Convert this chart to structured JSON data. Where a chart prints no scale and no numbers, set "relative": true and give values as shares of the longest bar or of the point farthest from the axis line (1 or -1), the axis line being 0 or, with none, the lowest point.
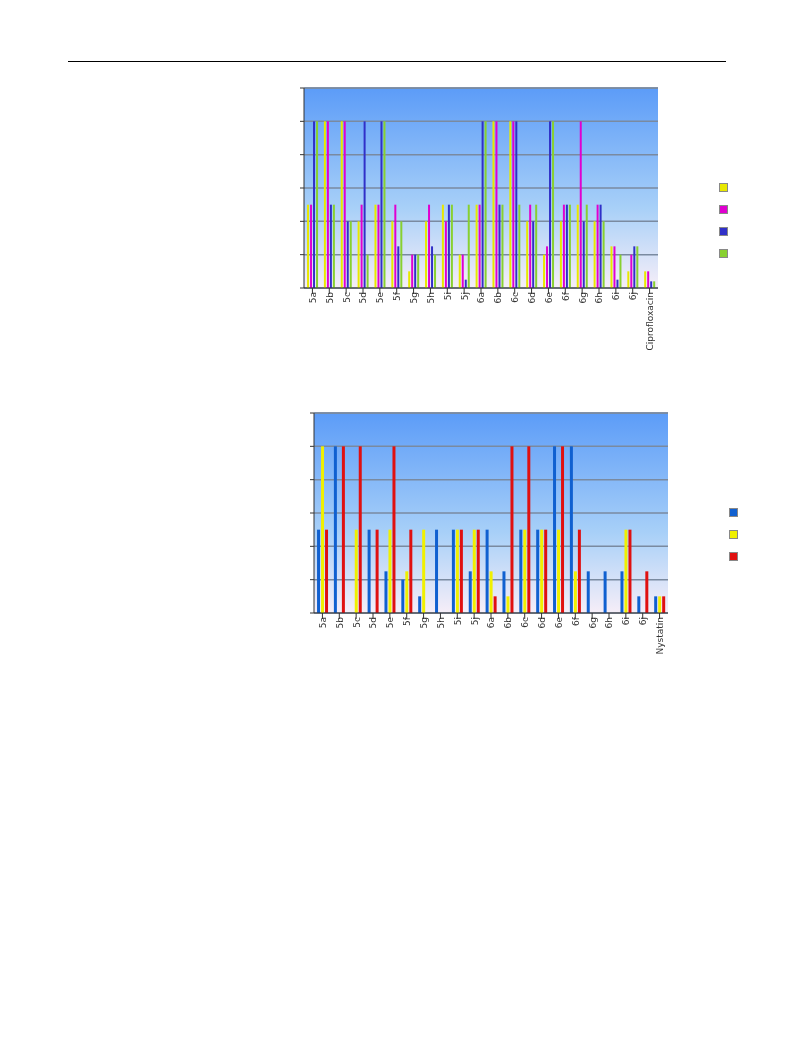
{
  "chart_data": [
    {
      "type": "bar",
      "relative": true,
      "grid": "y",
      "categories": [
        "5a",
        "5b",
        "5c",
        "5d",
        "5e",
        "5f",
        "5g",
        "5h",
        "5i",
        "5j",
        "6a",
        "6b",
        "6c",
        "6d",
        "6e",
        "6f",
        "6g",
        "6h",
        "6i",
        "6j",
        "Ciprofloxacin"
      ],
      "series": [
        {
          "color": "#e8e800",
          "values": [
            0.5,
            1,
            1,
            0.4,
            0.5,
            0.4,
            0.1,
            0.4,
            0.5,
            0.2,
            0.5,
            1,
            1,
            0.4,
            0.2,
            0.4,
            0.5,
            0.4,
            0.25,
            0.1,
            0.1
          ]
        },
        {
          "color": "#e000d0",
          "values": [
            0.5,
            1,
            1,
            0.5,
            0.5,
            0.5,
            0.2,
            0.5,
            0.4,
            0.2,
            0.5,
            1,
            1,
            0.5,
            0.25,
            0.5,
            1,
            0.5,
            0.25,
            0.2,
            0.1
          ]
        },
        {
          "color": "#3030c8",
          "values": [
            1,
            0.5,
            0.4,
            1,
            1,
            0.25,
            0.2,
            0.25,
            0.5,
            0.05,
            1,
            0.5,
            1,
            0.4,
            1,
            0.5,
            0.4,
            0.5,
            0.05,
            0.25,
            0.04
          ]
        },
        {
          "color": "#88d030",
          "values": [
            1,
            0.5,
            0.4,
            0.2,
            1,
            0.4,
            0.2,
            0.2,
            0.5,
            0.5,
            1,
            0.5,
            0.5,
            0.5,
            1,
            0.5,
            0.5,
            0.4,
            0.2,
            0.25,
            0.04
          ]
        }
      ]
    },
    {
      "type": "bar",
      "relative": true,
      "grid": "y",
      "categories": [
        "5a",
        "5b",
        "5c",
        "5d",
        "5e",
        "5f",
        "5g",
        "5h",
        "5i",
        "5j",
        "6a",
        "6b",
        "6c",
        "6d",
        "6e",
        "6f",
        "6g",
        "6h",
        "6i",
        "6j",
        "Nystatin"
      ],
      "series": [
        {
          "color": "#1060d0",
          "values": [
            0.5,
            1,
            0,
            0.5,
            0.25,
            0.2,
            0.1,
            0.5,
            0.5,
            0.25,
            0.5,
            0.25,
            0.5,
            0.5,
            1,
            1,
            0.25,
            0.25,
            0.25,
            0.1,
            0.1
          ]
        },
        {
          "color": "#f0f000",
          "values": [
            1,
            0,
            0.5,
            0,
            0.5,
            0.25,
            0.5,
            0,
            0.5,
            0.5,
            0.25,
            0.1,
            0.5,
            0.5,
            0.5,
            0.25,
            0,
            0,
            0.5,
            0,
            0.1
          ]
        },
        {
          "color": "#e01010",
          "values": [
            0.5,
            1,
            1,
            0.5,
            1,
            0.5,
            0,
            0,
            0.5,
            0.5,
            0.1,
            1,
            1,
            0.5,
            1,
            0.5,
            0,
            0,
            0.5,
            0.25,
            0.1
          ]
        }
      ]
    }
  ]
}
